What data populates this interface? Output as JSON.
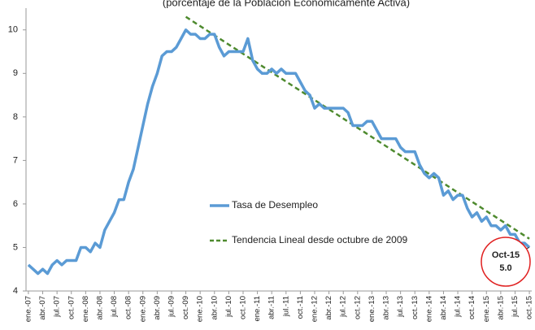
{
  "chart_data": {
    "type": "line",
    "title": "(porcentaje de la Población Económicamente Activa)",
    "categories": [
      "ene.-07",
      null,
      null,
      "abr.-07",
      null,
      null,
      "jul.-07",
      null,
      null,
      "oct.-07",
      null,
      null,
      "ene.-08",
      null,
      null,
      "abr.-08",
      null,
      null,
      "jul.-08",
      null,
      null,
      "oct.-08",
      null,
      null,
      "ene.-09",
      null,
      null,
      "abr.-09",
      null,
      null,
      "jul.-09",
      null,
      null,
      "oct.-09",
      null,
      null,
      "ene.-10",
      null,
      null,
      "abr.-10",
      null,
      null,
      "jul.-10",
      null,
      null,
      "oct.-10",
      null,
      null,
      "ene.-11",
      null,
      null,
      "abr.-11",
      null,
      null,
      "jul.-11",
      null,
      null,
      "oct.-11",
      null,
      null,
      "ene.-12",
      null,
      null,
      "abr.-12",
      null,
      null,
      "jul.-12",
      null,
      null,
      "oct.-12",
      null,
      null,
      "ene.-13",
      null,
      null,
      "abr.-13",
      null,
      null,
      "jul.-13",
      null,
      null,
      "oct.-13",
      null,
      null,
      "ene.-14",
      null,
      null,
      "abr.-14",
      null,
      null,
      "jul.-14",
      null,
      null,
      "oct.-14",
      null,
      null,
      "ene.-15",
      null,
      null,
      "abr.-15",
      null,
      null,
      "jul.-15",
      null,
      null,
      "oct.-15"
    ],
    "series": [
      {
        "name": "Tasa de Desempleo",
        "color": "#5b9bd5",
        "values": [
          4.6,
          4.5,
          4.4,
          4.5,
          4.4,
          4.6,
          4.7,
          4.6,
          4.7,
          4.7,
          4.7,
          5.0,
          5.0,
          4.9,
          5.1,
          5.0,
          5.4,
          5.6,
          5.8,
          6.1,
          6.1,
          6.5,
          6.8,
          7.3,
          7.8,
          8.3,
          8.7,
          9.0,
          9.4,
          9.5,
          9.5,
          9.6,
          9.8,
          10.0,
          9.9,
          9.9,
          9.8,
          9.8,
          9.9,
          9.9,
          9.6,
          9.4,
          9.5,
          9.5,
          9.5,
          9.5,
          9.8,
          9.3,
          9.1,
          9.0,
          9.0,
          9.1,
          9.0,
          9.1,
          9.0,
          9.0,
          9.0,
          8.8,
          8.6,
          8.5,
          8.2,
          8.3,
          8.2,
          8.2,
          8.2,
          8.2,
          8.2,
          8.1,
          7.8,
          7.8,
          7.8,
          7.9,
          7.9,
          7.7,
          7.5,
          7.5,
          7.5,
          7.5,
          7.3,
          7.2,
          7.2,
          7.2,
          6.9,
          6.7,
          6.6,
          6.7,
          6.6,
          6.2,
          6.3,
          6.1,
          6.2,
          6.2,
          5.9,
          5.7,
          5.8,
          5.6,
          5.7,
          5.5,
          5.5,
          5.4,
          5.5,
          5.3,
          5.3,
          5.1,
          5.1,
          5.0
        ]
      }
    ],
    "trendline": {
      "name": "Tendencia Lineal desde octubre de 2009",
      "color": "#4e8a2e",
      "start": {
        "category": "oct.-09",
        "value": 10.3
      },
      "end": {
        "category": "oct.-15",
        "value": 5.2
      }
    },
    "annotation": {
      "text": "Oct-15",
      "value": 5.0,
      "value_label": "5.0",
      "color": "#e02020"
    },
    "ylim": [
      4,
      10.5
    ],
    "yticks": [
      4,
      5,
      6,
      7,
      8,
      9,
      10
    ],
    "grid": false,
    "legend": "center"
  }
}
